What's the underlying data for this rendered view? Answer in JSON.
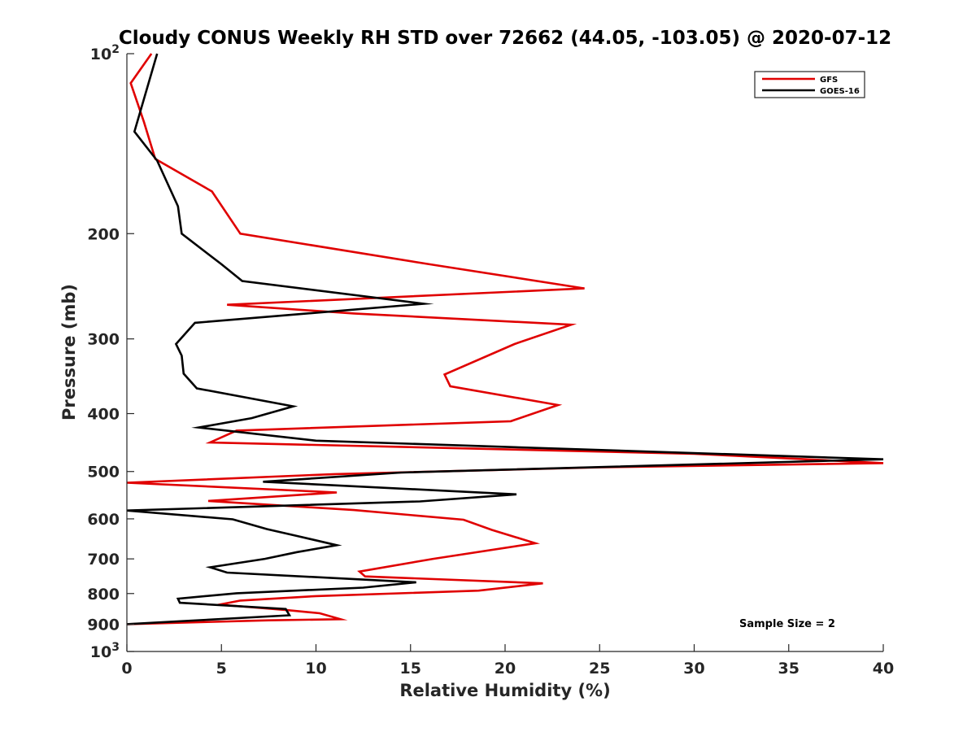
{
  "chart_data": {
    "type": "line",
    "title": "Cloudy CONUS Weekly RH STD over 72662 (44.05, -103.05) @ 2020-07-12",
    "xlabel": "Relative Humidity (%)",
    "ylabel": "Pressure (mb)",
    "xlim": [
      0,
      40
    ],
    "ylim": [
      100,
      1000
    ],
    "yscale": "log",
    "y_reversed": true,
    "grid": false,
    "legend_position": "top-right",
    "x_ticks": [
      0,
      5,
      10,
      15,
      20,
      25,
      30,
      35,
      40
    ],
    "x_tick_labels": [
      "0",
      "5",
      "10",
      "15",
      "20",
      "25",
      "30",
      "35",
      "40"
    ],
    "y_ticks": [
      100,
      200,
      300,
      400,
      500,
      600,
      700,
      800,
      900,
      1000
    ],
    "y_tick_labels": [
      {
        "base": "10",
        "exp": "2"
      },
      {
        "base": "200",
        "exp": ""
      },
      {
        "base": "300",
        "exp": ""
      },
      {
        "base": "400",
        "exp": ""
      },
      {
        "base": "500",
        "exp": ""
      },
      {
        "base": "600",
        "exp": ""
      },
      {
        "base": "700",
        "exp": ""
      },
      {
        "base": "800",
        "exp": ""
      },
      {
        "base": "900",
        "exp": ""
      },
      {
        "base": "10",
        "exp": "3"
      }
    ],
    "annotation": "Sample Size = 2",
    "series": [
      {
        "name": "GFS",
        "color": "#e00000",
        "points": [
          [
            1.3,
            100
          ],
          [
            0.2,
            112
          ],
          [
            0.9,
            130
          ],
          [
            1.5,
            150
          ],
          [
            4.5,
            170
          ],
          [
            6.0,
            200
          ],
          [
            16.0,
            225
          ],
          [
            24.2,
            247
          ],
          [
            5.3,
            263
          ],
          [
            12.0,
            272
          ],
          [
            23.5,
            284
          ],
          [
            20.5,
            306
          ],
          [
            16.8,
            344
          ],
          [
            17.1,
            360
          ],
          [
            22.8,
            387
          ],
          [
            20.3,
            412
          ],
          [
            5.8,
            427
          ],
          [
            4.4,
            447
          ],
          [
            30.0,
            467
          ],
          [
            40.0,
            484
          ],
          [
            25.0,
            492
          ],
          [
            11.0,
            505
          ],
          [
            0.0,
            522
          ],
          [
            11.1,
            542
          ],
          [
            4.3,
            560
          ],
          [
            12.0,
            580
          ],
          [
            17.8,
            602
          ],
          [
            19.3,
            626
          ],
          [
            21.6,
            659
          ],
          [
            16.2,
            700
          ],
          [
            12.3,
            735
          ],
          [
            12.6,
            749
          ],
          [
            22.0,
            769
          ],
          [
            18.6,
            791
          ],
          [
            10.0,
            808
          ],
          [
            6.0,
            822
          ],
          [
            4.9,
            835
          ],
          [
            8.5,
            853
          ],
          [
            10.2,
            863
          ],
          [
            11.3,
            883
          ],
          [
            7.5,
            887
          ],
          [
            0.0,
            900
          ]
        ]
      },
      {
        "name": "GOES-16",
        "color": "#000000",
        "points": [
          [
            1.6,
            100
          ],
          [
            0.4,
            135
          ],
          [
            1.6,
            151
          ],
          [
            2.7,
            180
          ],
          [
            2.9,
            200
          ],
          [
            5.0,
            225
          ],
          [
            6.1,
            240
          ],
          [
            15.7,
            262
          ],
          [
            3.6,
            282
          ],
          [
            2.6,
            306
          ],
          [
            2.9,
            320
          ],
          [
            3.0,
            343
          ],
          [
            3.7,
            363
          ],
          [
            8.8,
            389
          ],
          [
            6.6,
            407
          ],
          [
            3.8,
            422
          ],
          [
            10.0,
            444
          ],
          [
            40.0,
            477
          ],
          [
            14.5,
            502
          ],
          [
            7.2,
            520
          ],
          [
            20.6,
            546
          ],
          [
            15.5,
            561
          ],
          [
            0.0,
            581
          ],
          [
            5.6,
            601
          ],
          [
            7.4,
            624
          ],
          [
            9.0,
            641
          ],
          [
            11.1,
            664
          ],
          [
            9.0,
            682
          ],
          [
            7.3,
            700
          ],
          [
            4.4,
            723
          ],
          [
            5.3,
            738
          ],
          [
            15.3,
            766
          ],
          [
            12.5,
            782
          ],
          [
            5.8,
            799
          ],
          [
            2.7,
            816
          ],
          [
            2.8,
            829
          ],
          [
            8.4,
            849
          ],
          [
            8.6,
            870
          ],
          [
            0.0,
            900
          ]
        ]
      }
    ]
  }
}
